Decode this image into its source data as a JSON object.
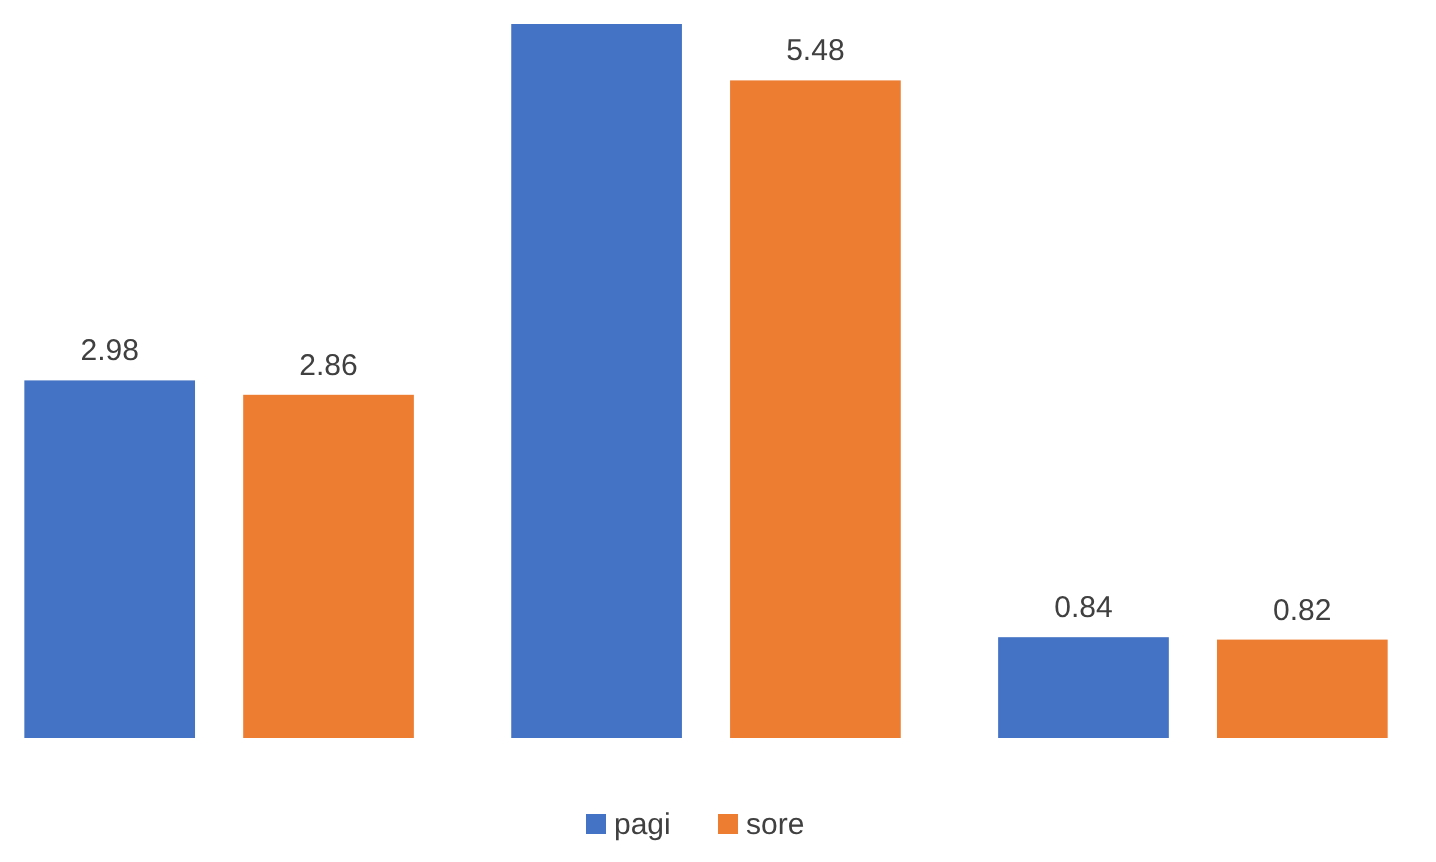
{
  "chart_data": {
    "type": "bar",
    "categories": [
      null,
      null,
      null
    ],
    "series": [
      {
        "name": "pagi",
        "color": "#4472c4",
        "values": [
          2.98,
          5.95,
          0.84
        ],
        "value_labels": [
          "2.98",
          null,
          "0.84"
        ]
      },
      {
        "name": "sore",
        "color": "#ed7d31",
        "values": [
          2.86,
          5.48,
          0.82
        ],
        "value_labels": [
          "2.86",
          "5.48",
          "0.82"
        ]
      }
    ],
    "legend": "bottom",
    "grid": false
  }
}
